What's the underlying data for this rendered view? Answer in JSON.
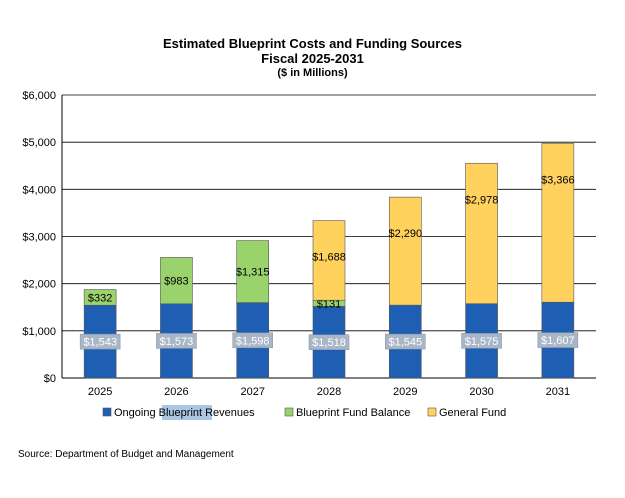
{
  "header": {
    "title": "Estimated Blueprint Costs and Funding Sources",
    "subtitle": "Fiscal 2025-2031",
    "units": "($ in Millions)"
  },
  "source": "Source:  Department of Budget and Management",
  "chart_data": {
    "type": "bar",
    "stacked": true,
    "title": "Estimated Blueprint Costs and Funding Sources",
    "xlabel": "",
    "ylabel": "",
    "ylim": [
      0,
      6000
    ],
    "yticks": [
      0,
      1000,
      2000,
      3000,
      4000,
      5000,
      6000
    ],
    "ytick_labels": [
      "$0",
      "$1,000",
      "$2,000",
      "$3,000",
      "$4,000",
      "$5,000",
      "$6,000"
    ],
    "grid": true,
    "legend": "bottom",
    "categories": [
      "2025",
      "2026",
      "2027",
      "2028",
      "2029",
      "2030",
      "2031"
    ],
    "series": [
      {
        "name": "Ongoing Blueprint Revenues",
        "color": "#1f5fb3",
        "values": [
          1543,
          1573,
          1598,
          1518,
          1545,
          1575,
          1607
        ],
        "labels": [
          "$1,543",
          "$1,573",
          "$1,598",
          "$1,518",
          "$1,545",
          "$1,575",
          "$1,607"
        ]
      },
      {
        "name": "Blueprint Fund Balance",
        "color": "#9ad26b",
        "values": [
          332,
          983,
          1315,
          131,
          0,
          0,
          0
        ],
        "labels": [
          "$332",
          "$983",
          "$1,315",
          "$131",
          "",
          "",
          ""
        ]
      },
      {
        "name": "General Fund",
        "color": "#ffd25e",
        "values": [
          0,
          0,
          0,
          1688,
          2290,
          2978,
          3366
        ],
        "labels": [
          "",
          "",
          "",
          "$1,688",
          "$2,290",
          "$2,978",
          "$3,366"
        ]
      }
    ]
  }
}
